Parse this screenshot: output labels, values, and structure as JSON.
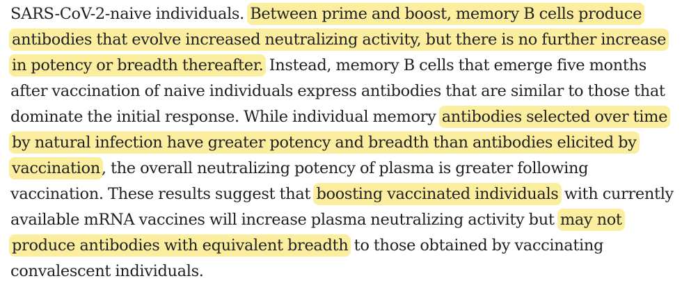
{
  "document": {
    "highlight_color": "#fcee9f",
    "text_color": "#1f1f1f",
    "lines": [
      [
        {
          "text": "SARS-CoV-2-naive individuals. ",
          "highlighted": false
        },
        {
          "text": "Between prime and boost, memory B cells produce",
          "highlighted": true
        }
      ],
      [
        {
          "text": "antibodies that evolve increased neutralizing activity, but there is no further increase",
          "highlighted": true
        }
      ],
      [
        {
          "text": "in potency or breadth thereafter.",
          "highlighted": true
        },
        {
          "text": " Instead, memory B cells that emerge five months",
          "highlighted": false
        }
      ],
      [
        {
          "text": "after vaccination of naive individuals express antibodies that are similar to those that",
          "highlighted": false
        }
      ],
      [
        {
          "text": "dominate the initial response. While individual memory ",
          "highlighted": false
        },
        {
          "text": "antibodies selected over time",
          "highlighted": true
        }
      ],
      [
        {
          "text": "by natural infection have greater potency and breadth than antibodies elicited by",
          "highlighted": true
        }
      ],
      [
        {
          "text": "vaccination",
          "highlighted": true
        },
        {
          "text": ", the overall neutralizing potency of plasma is greater following",
          "highlighted": false
        }
      ],
      [
        {
          "text": "vaccination. These results suggest that ",
          "highlighted": false
        },
        {
          "text": "boosting vaccinated individuals",
          "highlighted": true
        },
        {
          "text": " with currently",
          "highlighted": false
        }
      ],
      [
        {
          "text": "available mRNA vaccines will increase plasma neutralizing activity but ",
          "highlighted": false
        },
        {
          "text": "may not",
          "highlighted": true
        }
      ],
      [
        {
          "text": "produce antibodies with equivalent breadth",
          "highlighted": true
        },
        {
          "text": " to those obtained by vaccinating",
          "highlighted": false
        }
      ],
      [
        {
          "text": "convalescent individuals.",
          "highlighted": false
        }
      ]
    ]
  }
}
